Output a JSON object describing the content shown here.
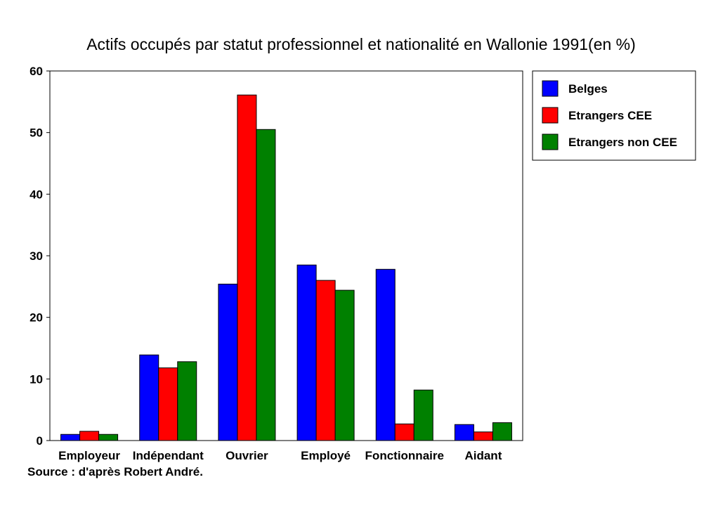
{
  "chart_data": {
    "type": "bar",
    "title": "Actifs occupés par statut professionnel et nationalité en Wallonie 1991(en %)",
    "categories": [
      "Employeur",
      "Indépendant",
      "Ouvrier",
      "Employé",
      "Fonctionnaire",
      "Aidant"
    ],
    "series": [
      {
        "name": "Belges",
        "color": "#0000ff",
        "values": [
          1.0,
          13.9,
          25.4,
          28.5,
          27.8,
          2.6
        ]
      },
      {
        "name": "Etrangers CEE",
        "color": "#ff0000",
        "values": [
          1.5,
          11.8,
          56.1,
          26.0,
          2.7,
          1.4
        ]
      },
      {
        "name": "Etrangers non CEE",
        "color": "#008000",
        "values": [
          1.0,
          12.8,
          50.5,
          24.4,
          8.2,
          2.9
        ]
      }
    ],
    "ylim": [
      0,
      60
    ],
    "yticks": [
      0,
      10,
      20,
      30,
      40,
      50,
      60
    ],
    "xlabel": "",
    "ylabel": "",
    "grid": false,
    "legend": "right"
  },
  "source_note": "Source : d'après Robert André."
}
